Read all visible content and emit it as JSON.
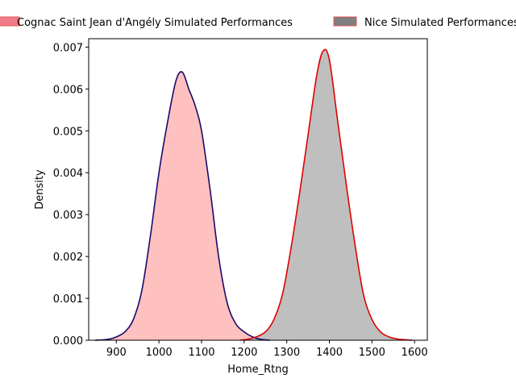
{
  "chart_data": {
    "type": "area",
    "xlabel": "Home_Rtng",
    "ylabel": "Density",
    "xlim": [
      835,
      1630
    ],
    "ylim": [
      0,
      0.0072
    ],
    "x_ticks": [
      900,
      1000,
      1100,
      1200,
      1300,
      1400,
      1500,
      1600
    ],
    "y_ticks": [
      0.0,
      0.001,
      0.002,
      0.003,
      0.004,
      0.005,
      0.006,
      0.007
    ],
    "x_tick_labels": [
      "900",
      "1000",
      "1100",
      "1200",
      "1300",
      "1400",
      "1500",
      "1600"
    ],
    "y_tick_labels": [
      "0.000",
      "0.001",
      "0.002",
      "0.003",
      "0.004",
      "0.005",
      "0.006",
      "0.007"
    ],
    "grid": false,
    "legend": {
      "placement": "top",
      "outside": true
    },
    "series": [
      {
        "name": "Cognac Saint Jean d'Angély Simulated Performances",
        "fill": "#ffc0c0",
        "line": "#1a0a6b",
        "legend_fill": "#f07b86",
        "legend_edge": "#e05a5a",
        "x": [
          850,
          880,
          900,
          920,
          940,
          960,
          980,
          1000,
          1020,
          1040,
          1055,
          1070,
          1085,
          1100,
          1120,
          1140,
          1160,
          1180,
          1200,
          1220,
          1240,
          1260
        ],
        "y": [
          0.0,
          2e-05,
          8e-05,
          0.0002,
          0.0005,
          0.0012,
          0.0025,
          0.004,
          0.0052,
          0.0062,
          0.0064,
          0.006,
          0.0056,
          0.005,
          0.0036,
          0.002,
          0.0009,
          0.0004,
          0.0002,
          8e-05,
          2e-05,
          0.0
        ]
      },
      {
        "name": "Nice Simulated Performances",
        "fill": "#bfbfbf",
        "line": "#e00000",
        "legend_fill": "#7f7f7f",
        "legend_edge": "#e05a5a",
        "x": [
          1190,
          1220,
          1250,
          1270,
          1290,
          1310,
          1330,
          1350,
          1370,
          1385,
          1400,
          1420,
          1440,
          1460,
          1480,
          1500,
          1520,
          1540,
          1560,
          1580,
          1595
        ],
        "y": [
          0.0,
          5e-05,
          0.0002,
          0.0005,
          0.0011,
          0.0022,
          0.0035,
          0.0049,
          0.0063,
          0.0069,
          0.0067,
          0.0052,
          0.0037,
          0.0023,
          0.0011,
          0.0005,
          0.0002,
          8e-05,
          3e-05,
          1e-05,
          0.0
        ]
      }
    ]
  }
}
